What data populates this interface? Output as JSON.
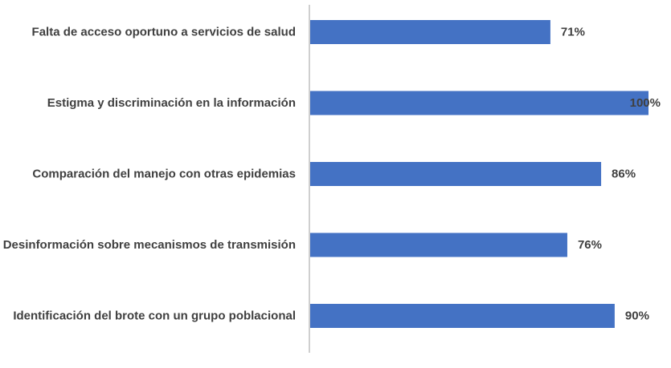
{
  "chart_data": {
    "type": "bar",
    "orientation": "horizontal",
    "categories": [
      "Falta de acceso oportuno a servicios de salud",
      "Estigma y discriminación en la información",
      "Comparación del manejo con otras epidemias",
      "Desinformación sobre mecanismos de transmisión",
      "Identificación del brote con un grupo poblacional"
    ],
    "values": [
      71,
      100,
      86,
      76,
      90
    ],
    "value_labels": [
      "71%",
      "100%",
      "86%",
      "76%",
      "90%"
    ],
    "xlim": [
      0,
      100
    ],
    "grid": false,
    "legend": "none",
    "colors": {
      "bar": "#4472C4",
      "axis": "#BFBFBF",
      "label_text": "#404040"
    }
  }
}
